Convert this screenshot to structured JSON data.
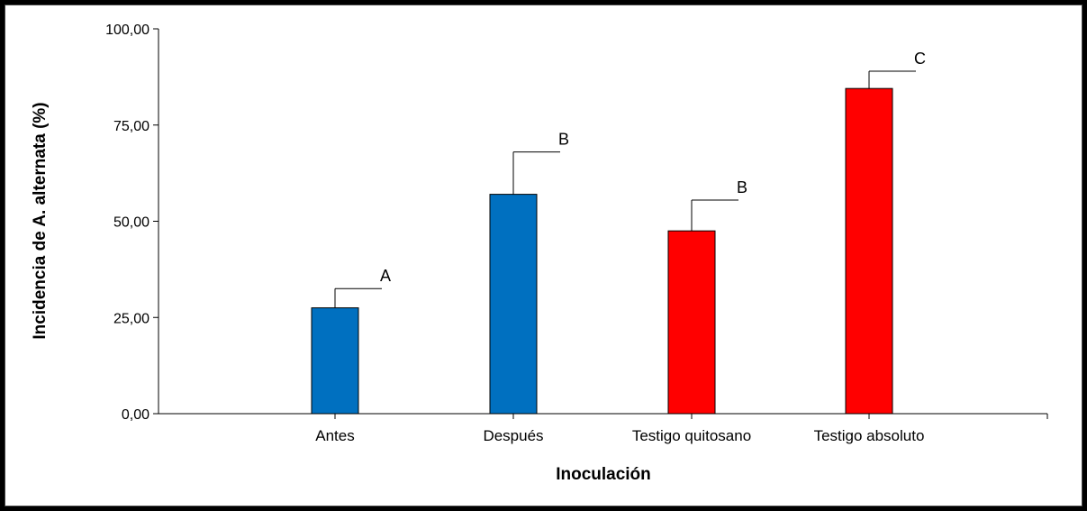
{
  "chart_data": {
    "type": "bar",
    "title": "",
    "xlabel": "Inoculación",
    "ylabel": "Incidencia de A. alternata (%)",
    "ylim": [
      0,
      100
    ],
    "yticks": [
      0,
      25,
      50,
      75,
      100
    ],
    "ytick_labels": [
      "0,00",
      "25,00",
      "50,00",
      "75,00",
      "100,00"
    ],
    "categories": [
      "Antes",
      "Después",
      "Testigo quitosano",
      "Testigo absoluto"
    ],
    "values": [
      27.5,
      57.0,
      47.5,
      84.5
    ],
    "error_upper": [
      32.5,
      68.0,
      55.5,
      89.0
    ],
    "significance_letters": [
      "A",
      "B",
      "B",
      "C"
    ],
    "bar_colors": [
      "#0070C0",
      "#0070C0",
      "#FF0000",
      "#FF0000"
    ],
    "grid": false,
    "legend": "none"
  }
}
